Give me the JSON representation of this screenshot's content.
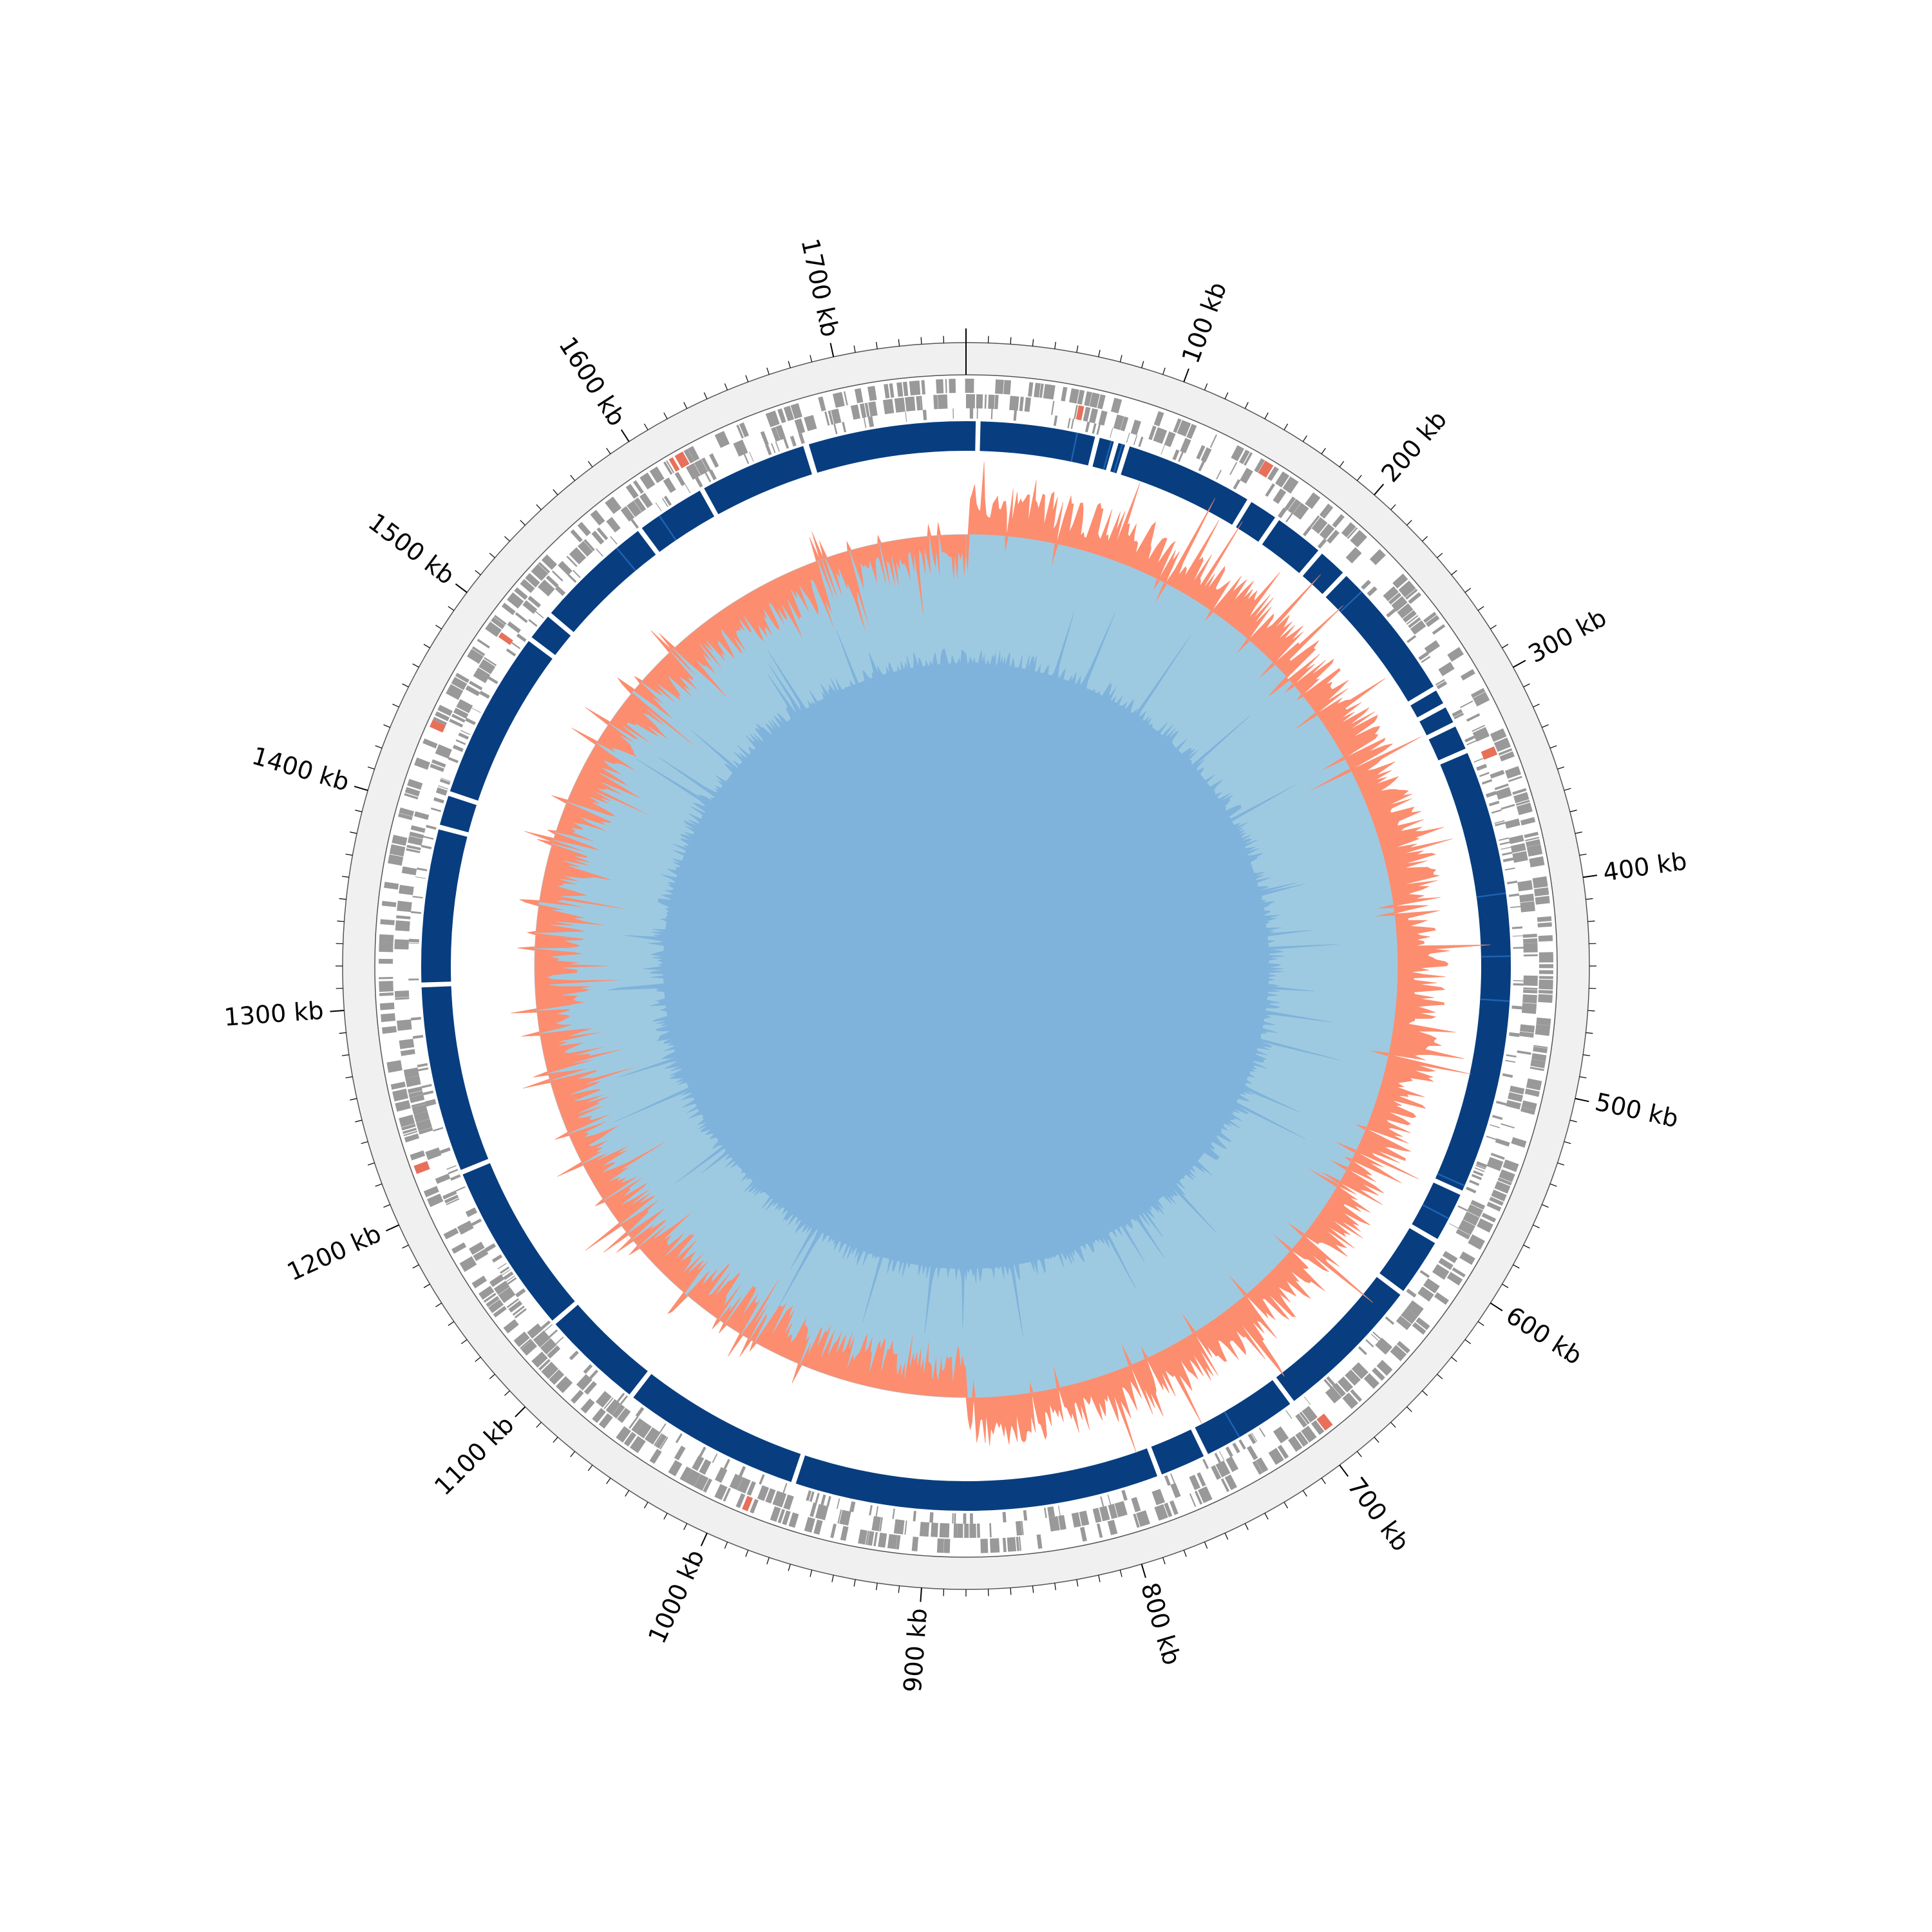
{
  "genome": {
    "length_kb": 1760,
    "label_unit": "kb",
    "labels": [
      "100 kb",
      "200 kb",
      "300 kb",
      "400 kb",
      "500 kb",
      "600 kb",
      "700 kb",
      "800 kb",
      "900 kb",
      "1000 kb",
      "1100 kb",
      "1200 kb",
      "1300 kb",
      "1400 kb",
      "1500 kb",
      "1600 kb",
      "1700 kb"
    ]
  },
  "colors": {
    "background": "#ffffff",
    "outer_ring": "#f0f0f0",
    "cds": "#999999",
    "rna": "#e8705a",
    "cog_block": "#083e80",
    "cog_accent": "#1f63b0",
    "skew_positive": "#fc8d6f",
    "skew_negative": "#9ecae1",
    "gc_positive": "#86cc7a",
    "gc_negative": "#7fb3dc",
    "dark_mark": "#111111"
  },
  "tracks": [
    "outer-ring",
    "cds-track",
    "cog-block-ring",
    "gc-skew-track",
    "gc-content-track"
  ],
  "cog_gaps_kb": [
    6,
    68,
    78,
    84,
    153,
    170,
    198,
    215,
    290,
    300,
    311,
    326,
    560,
    588,
    620,
    700,
    752,
    778,
    970,
    1065,
    1120,
    1211,
    1310,
    1392,
    1410,
    1500,
    1516,
    1580,
    1618,
    1676
  ]
}
